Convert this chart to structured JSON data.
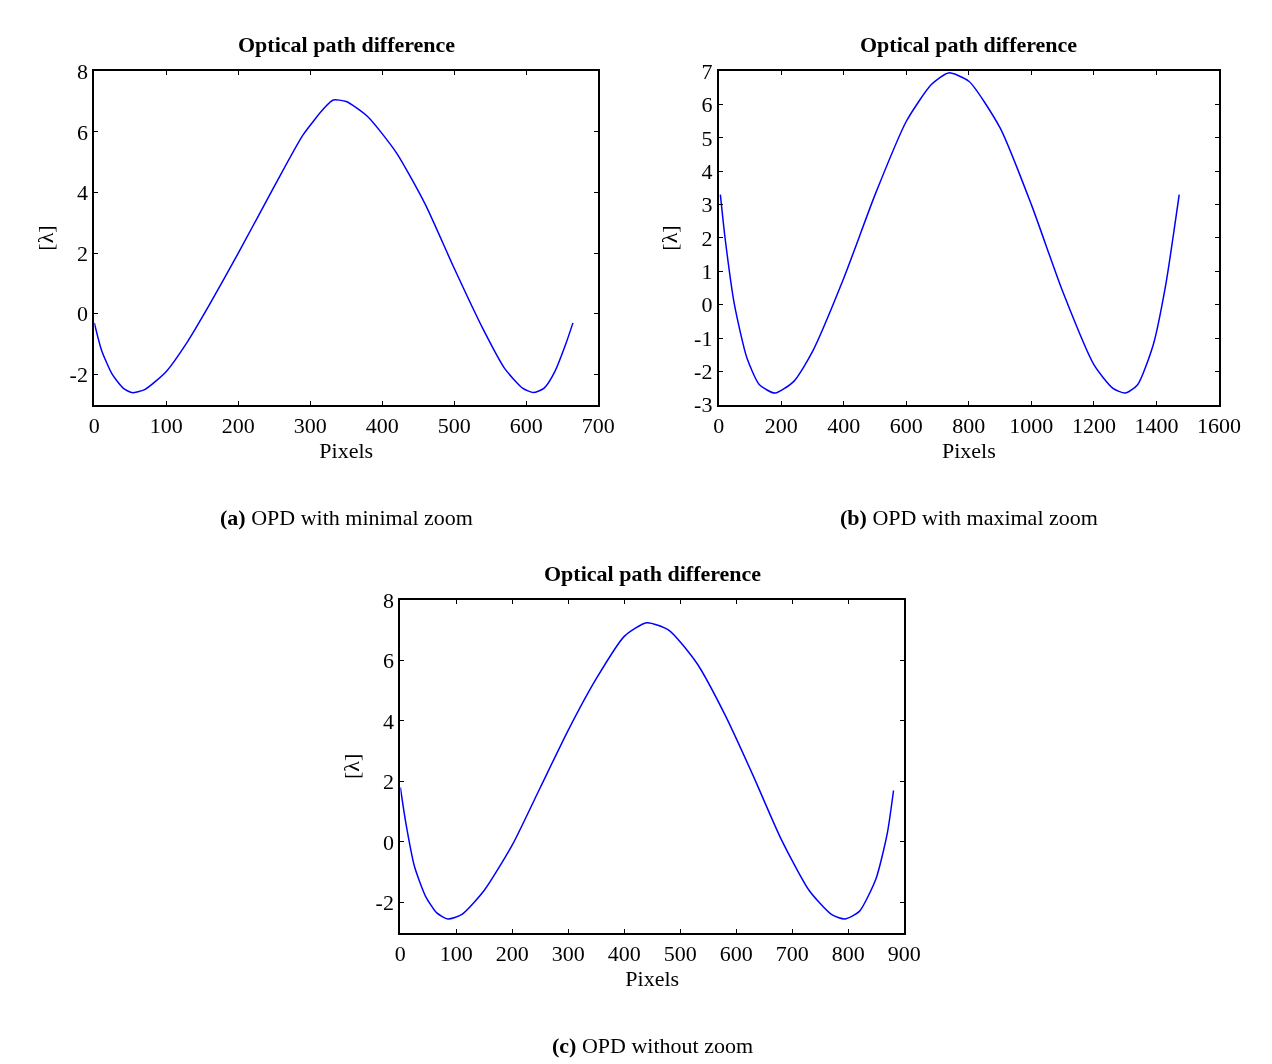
{
  "chart_data": [
    {
      "type": "line",
      "title": "Optical path difference",
      "xlabel": "Pixels",
      "ylabel": "[λ]",
      "annotations": [
        "(a) OPD with minimal zoom"
      ],
      "xlim": [
        0,
        700
      ],
      "xticks": [
        0,
        100,
        200,
        300,
        400,
        500,
        600,
        700
      ],
      "ylim": [
        -3,
        8
      ],
      "yticks": [
        -2,
        0,
        2,
        4,
        6,
        8
      ],
      "series": [
        {
          "color": "#0000ff",
          "x": [
            0,
            10,
            25,
            40,
            52,
            70,
            100,
            130,
            160,
            200,
            250,
            290,
            320,
            332,
            350,
            380,
            420,
            460,
            500,
            540,
            570,
            595,
            610,
            625,
            640,
            655,
            665
          ],
          "values": [
            -0.3,
            -1.2,
            -2.0,
            -2.45,
            -2.6,
            -2.5,
            -1.9,
            -0.9,
            0.3,
            2.0,
            4.2,
            5.9,
            6.8,
            7.05,
            7.0,
            6.5,
            5.3,
            3.6,
            1.5,
            -0.5,
            -1.8,
            -2.45,
            -2.6,
            -2.45,
            -1.9,
            -1.0,
            -0.3
          ]
        }
      ]
    },
    {
      "type": "line",
      "title": "Optical path difference",
      "xlabel": "Pixels",
      "ylabel": "[λ]",
      "annotations": [
        "(b) OPD with maximal zoom"
      ],
      "xlim": [
        0,
        1600
      ],
      "xticks": [
        0,
        200,
        400,
        600,
        800,
        1000,
        1200,
        1400,
        1600
      ],
      "ylim": [
        -3,
        7
      ],
      "yticks": [
        -3,
        -2,
        -1,
        0,
        1,
        2,
        3,
        4,
        5,
        6,
        7
      ],
      "series": [
        {
          "color": "#0000ff",
          "x": [
            5,
            20,
            50,
            90,
            130,
            180,
            240,
            300,
            400,
            500,
            600,
            680,
            735,
            800,
            900,
            1000,
            1100,
            1200,
            1260,
            1300,
            1340,
            1390,
            1430,
            1473
          ],
          "values": [
            3.3,
            2.0,
            0.0,
            -1.6,
            -2.4,
            -2.65,
            -2.3,
            -1.4,
            0.8,
            3.3,
            5.5,
            6.6,
            6.95,
            6.7,
            5.3,
            3.0,
            0.4,
            -1.8,
            -2.5,
            -2.65,
            -2.4,
            -1.2,
            0.6,
            3.3
          ]
        }
      ]
    },
    {
      "type": "line",
      "title": "Optical path difference",
      "xlabel": "Pixels",
      "ylabel": "[λ]",
      "annotations": [
        "(c) OPD without zoom"
      ],
      "xlim": [
        0,
        900
      ],
      "xticks": [
        0,
        100,
        200,
        300,
        400,
        500,
        600,
        700,
        800,
        900
      ],
      "ylim": [
        -3,
        8
      ],
      "yticks": [
        -2,
        0,
        2,
        4,
        6,
        8
      ],
      "series": [
        {
          "color": "#0000ff",
          "x": [
            0,
            10,
            25,
            45,
            65,
            85,
            110,
            150,
            200,
            250,
            300,
            350,
            400,
            440,
            480,
            530,
            580,
            630,
            680,
            730,
            770,
            794,
            820,
            850,
            870,
            881
          ],
          "values": [
            1.8,
            0.6,
            -0.8,
            -1.8,
            -2.35,
            -2.55,
            -2.4,
            -1.6,
            -0.1,
            1.8,
            3.7,
            5.4,
            6.8,
            7.25,
            7.0,
            5.9,
            4.2,
            2.2,
            0.1,
            -1.6,
            -2.4,
            -2.55,
            -2.3,
            -1.2,
            0.3,
            1.7
          ]
        }
      ]
    }
  ]
}
